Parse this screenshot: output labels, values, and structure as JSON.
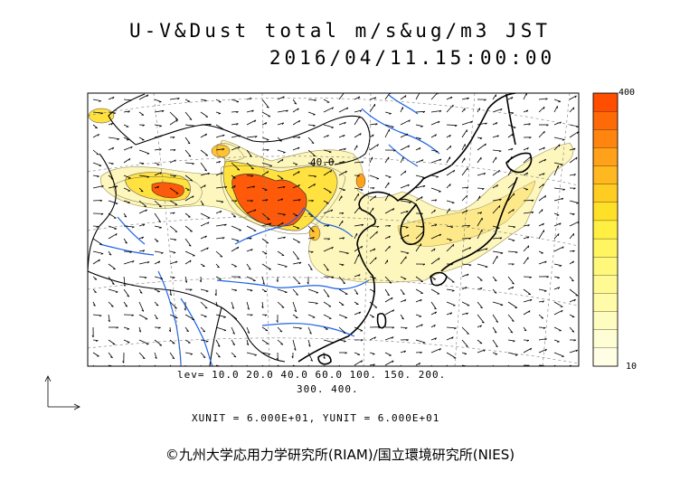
{
  "title": {
    "line1": "U-V&Dust total m/s&ug/m3 JST",
    "line2": "2016/04/11.15:00:00"
  },
  "contour_label": "40.0",
  "legend": {
    "lev_line1": "lev= 10.0 20.0 40.0 60.0 100. 150. 200.",
    "lev_line2": "300. 400.",
    "levels": [
      10,
      20,
      40,
      60,
      100,
      150,
      200,
      300,
      400
    ],
    "unit_line": "XUNIT = 6.000E+01, YUNIT = 6.000E+01"
  },
  "colorbar": {
    "max_label": "400",
    "min_label": "10",
    "colors": [
      "#ff4e00",
      "#ff6a08",
      "#ff850f",
      "#ffa11a",
      "#ffb820",
      "#ffcc22",
      "#ffe029",
      "#ffef42",
      "#fff561",
      "#fff87a",
      "#fffa94",
      "#fffba8",
      "#fffcc0",
      "#fffdd3",
      "#fffde3"
    ]
  },
  "credit": "©九州大学応用力学研究所(RIAM)/国立環境研究所(NIES)",
  "colors": {
    "coast": "#000000",
    "river": "#1e64e6",
    "dust_light": "#fdf5b5",
    "dust_mid": "#ffe34d",
    "dust_high": "#ff5a0a"
  }
}
